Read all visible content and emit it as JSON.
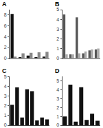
{
  "chart_data": [
    {
      "type": "bar",
      "title": "A",
      "categories": [
        null,
        null,
        null,
        null,
        null
      ],
      "series": [
        {
          "color": "#111111",
          "values": [
            8.2,
            0.2,
            0.5,
            0.2,
            0.3
          ]
        },
        {
          "color": "#888888",
          "values": [
            0.3,
            0.9,
            1.0,
            1.1,
            1.2
          ]
        }
      ],
      "ylim": [
        0,
        9
      ],
      "yticks": [
        0,
        2,
        4,
        6,
        8
      ],
      "grid": false,
      "tick_labels": "y"
    },
    {
      "type": "bar",
      "title": "B",
      "categories": [
        null,
        null,
        null,
        null,
        null,
        null
      ],
      "series": [
        {
          "color": "#555555",
          "values": [
            4.5,
            0.4,
            4.2,
            0.5,
            0.8,
            0.9
          ]
        },
        {
          "color": "#aaaaaa",
          "values": [
            0.4,
            0.4,
            0.5,
            0.7,
            0.9,
            1.0
          ]
        }
      ],
      "ylim": [
        0,
        5
      ],
      "yticks": [
        0,
        1,
        2,
        3,
        4,
        5
      ],
      "grid": false,
      "tick_labels": "y"
    },
    {
      "type": "bar",
      "title": "C",
      "categories": [
        null,
        null,
        null,
        null,
        null,
        null,
        null,
        null
      ],
      "values": [
        2.1,
        3.9,
        0.8,
        3.7,
        3.5,
        0.5,
        0.8,
        0.6
      ],
      "color": "#111111",
      "ylim": [
        0,
        5
      ],
      "yticks": [
        0,
        1,
        2,
        3,
        4,
        5
      ],
      "grid": false,
      "tick_labels": "y"
    },
    {
      "type": "bar",
      "title": "D",
      "categories": [
        null,
        null,
        null,
        null,
        null,
        null,
        null
      ],
      "values": [
        1.0,
        4.6,
        0.4,
        4.3,
        0.6,
        1.3,
        0.5
      ],
      "color": "#111111",
      "ylim": [
        0,
        5.5
      ],
      "yticks": [
        0,
        1,
        2,
        3,
        4,
        5
      ],
      "grid": false,
      "tick_labels": "y"
    }
  ]
}
